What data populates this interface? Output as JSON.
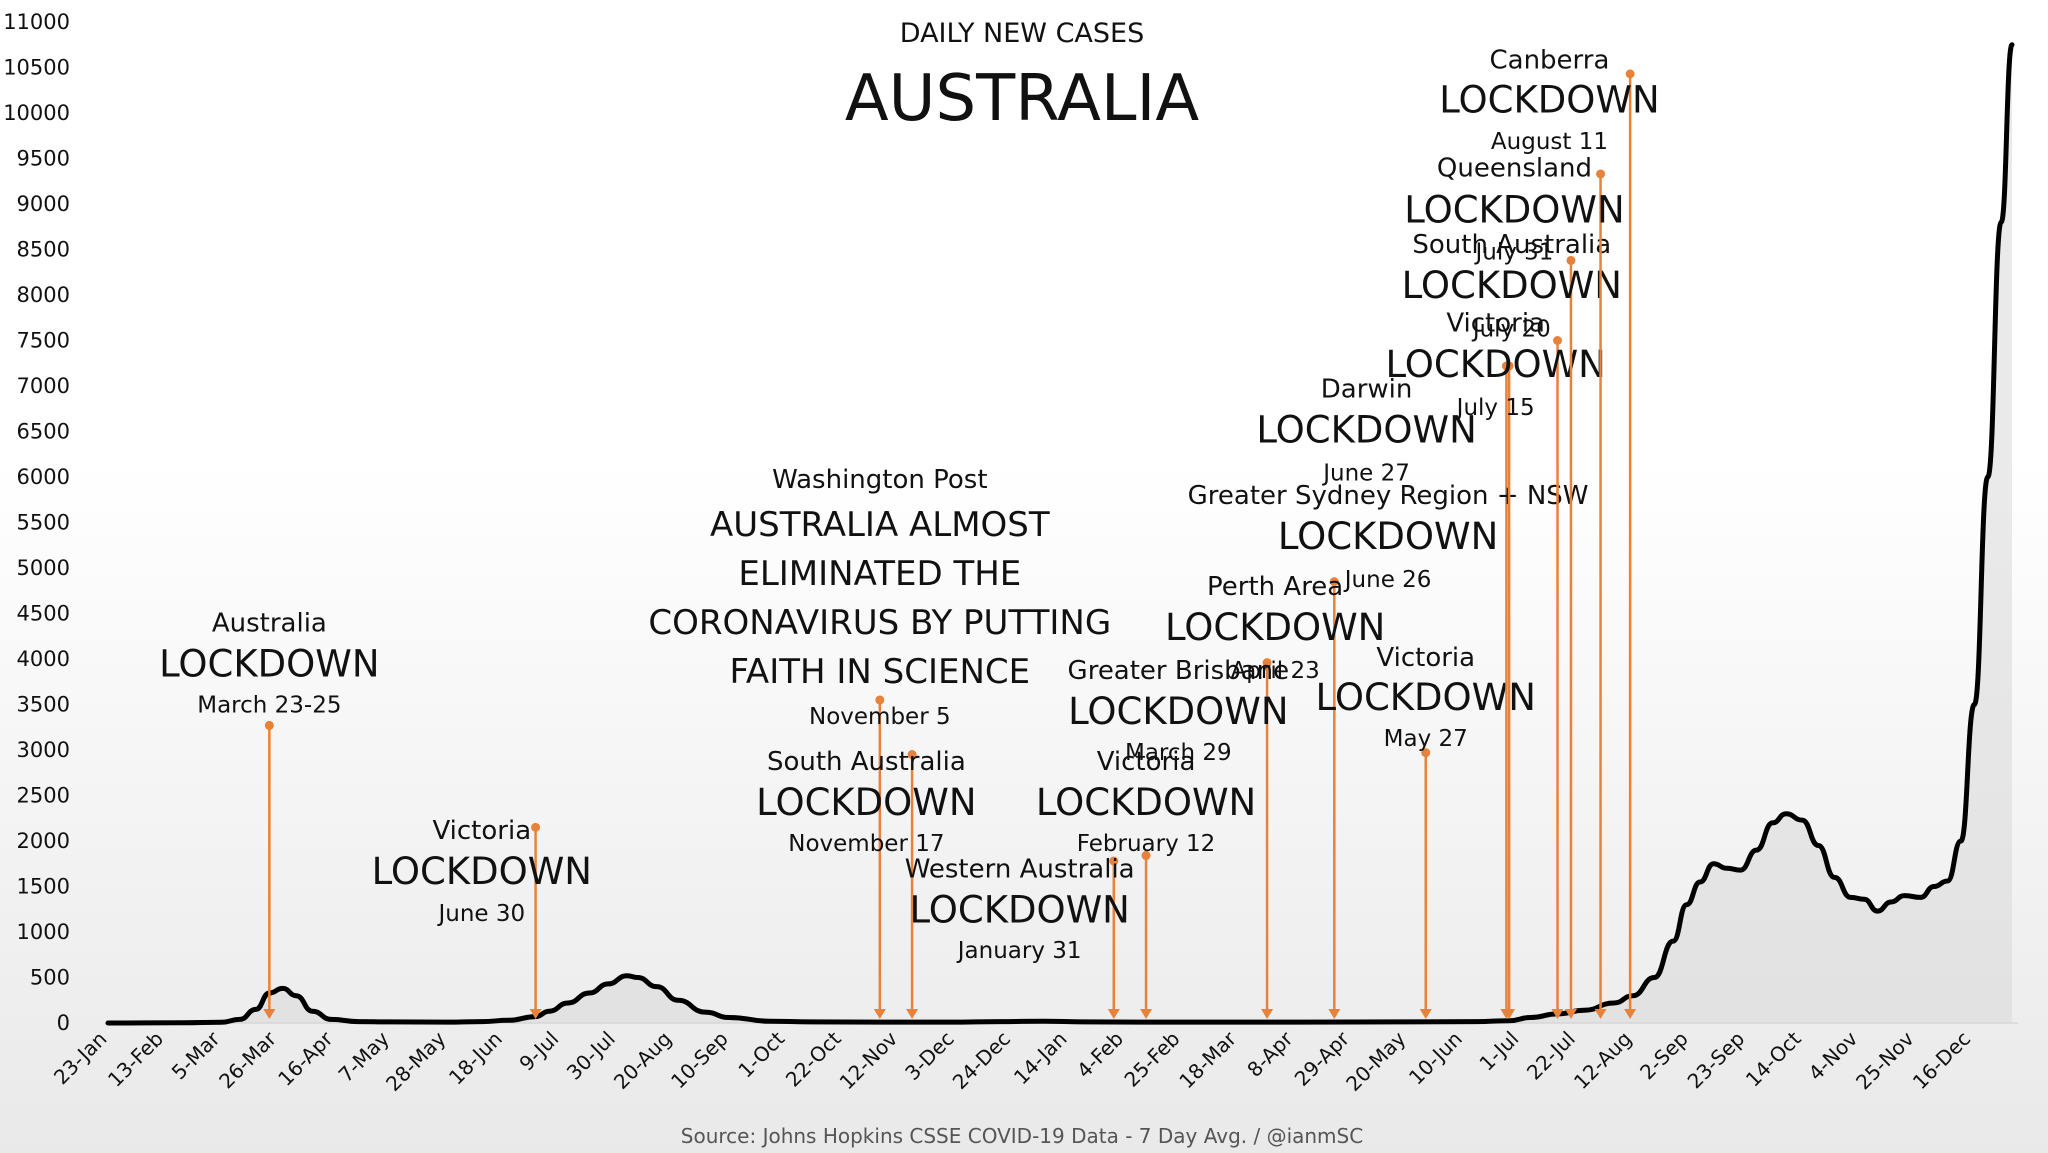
{
  "chart_data": {
    "type": "line",
    "subtitle": "DAILY NEW CASES",
    "title": "AUSTRALIA",
    "source": "Source: Johns Hopkins CSSE COVID-19 Data - 7 Day Avg. / @ianmSC",
    "ylim": [
      0,
      11000
    ],
    "y_ticks": [
      0,
      500,
      1000,
      1500,
      2000,
      2500,
      3000,
      3500,
      4000,
      4500,
      5000,
      5500,
      6000,
      6500,
      7000,
      7500,
      8000,
      8500,
      9000,
      9500,
      10000,
      10500,
      11000
    ],
    "x_start": "2020-01-23",
    "x_end": "2021-12-31",
    "x_ticks": [
      {
        "label": "23-Jan",
        "date": "2020-01-23"
      },
      {
        "label": "13-Feb",
        "date": "2020-02-13"
      },
      {
        "label": "5-Mar",
        "date": "2020-03-05"
      },
      {
        "label": "26-Mar",
        "date": "2020-03-26"
      },
      {
        "label": "16-Apr",
        "date": "2020-04-16"
      },
      {
        "label": "7-May",
        "date": "2020-05-07"
      },
      {
        "label": "28-May",
        "date": "2020-05-28"
      },
      {
        "label": "18-Jun",
        "date": "2020-06-18"
      },
      {
        "label": "9-Jul",
        "date": "2020-07-09"
      },
      {
        "label": "30-Jul",
        "date": "2020-07-30"
      },
      {
        "label": "20-Aug",
        "date": "2020-08-20"
      },
      {
        "label": "10-Sep",
        "date": "2020-09-10"
      },
      {
        "label": "1-Oct",
        "date": "2020-10-01"
      },
      {
        "label": "22-Oct",
        "date": "2020-10-22"
      },
      {
        "label": "12-Nov",
        "date": "2020-11-12"
      },
      {
        "label": "3-Dec",
        "date": "2020-12-03"
      },
      {
        "label": "24-Dec",
        "date": "2020-12-24"
      },
      {
        "label": "14-Jan",
        "date": "2021-01-14"
      },
      {
        "label": "4-Feb",
        "date": "2021-02-04"
      },
      {
        "label": "25-Feb",
        "date": "2021-02-25"
      },
      {
        "label": "18-Mar",
        "date": "2021-03-18"
      },
      {
        "label": "8-Apr",
        "date": "2021-04-08"
      },
      {
        "label": "29-Apr",
        "date": "2021-04-29"
      },
      {
        "label": "20-May",
        "date": "2021-05-20"
      },
      {
        "label": "10-Jun",
        "date": "2021-06-10"
      },
      {
        "label": "1-Jul",
        "date": "2021-07-01"
      },
      {
        "label": "22-Jul",
        "date": "2021-07-22"
      },
      {
        "label": "12-Aug",
        "date": "2021-08-12"
      },
      {
        "label": "2-Sep",
        "date": "2021-09-02"
      },
      {
        "label": "23-Sep",
        "date": "2021-09-23"
      },
      {
        "label": "14-Oct",
        "date": "2021-10-14"
      },
      {
        "label": "4-Nov",
        "date": "2021-11-04"
      },
      {
        "label": "25-Nov",
        "date": "2021-11-25"
      },
      {
        "label": "16-Dec",
        "date": "2021-12-16"
      }
    ],
    "series": [
      {
        "points": [
          [
            "2020-01-23",
            0
          ],
          [
            "2020-02-20",
            2
          ],
          [
            "2020-03-05",
            8
          ],
          [
            "2020-03-12",
            40
          ],
          [
            "2020-03-18",
            150
          ],
          [
            "2020-03-23",
            330
          ],
          [
            "2020-03-28",
            380
          ],
          [
            "2020-04-02",
            300
          ],
          [
            "2020-04-08",
            130
          ],
          [
            "2020-04-15",
            40
          ],
          [
            "2020-04-25",
            15
          ],
          [
            "2020-05-07",
            12
          ],
          [
            "2020-05-28",
            10
          ],
          [
            "2020-06-10",
            15
          ],
          [
            "2020-06-20",
            30
          ],
          [
            "2020-06-30",
            70
          ],
          [
            "2020-07-05",
            130
          ],
          [
            "2020-07-12",
            220
          ],
          [
            "2020-07-20",
            330
          ],
          [
            "2020-07-27",
            430
          ],
          [
            "2020-08-03",
            520
          ],
          [
            "2020-08-07",
            500
          ],
          [
            "2020-08-14",
            400
          ],
          [
            "2020-08-22",
            250
          ],
          [
            "2020-09-01",
            120
          ],
          [
            "2020-09-10",
            60
          ],
          [
            "2020-09-25",
            20
          ],
          [
            "2020-10-10",
            12
          ],
          [
            "2020-11-05",
            10
          ],
          [
            "2020-12-01",
            10
          ],
          [
            "2020-12-20",
            15
          ],
          [
            "2021-01-05",
            20
          ],
          [
            "2021-01-20",
            12
          ],
          [
            "2021-02-10",
            10
          ],
          [
            "2021-03-10",
            10
          ],
          [
            "2021-04-10",
            10
          ],
          [
            "2021-05-20",
            12
          ],
          [
            "2021-06-15",
            15
          ],
          [
            "2021-06-27",
            25
          ],
          [
            "2021-07-05",
            60
          ],
          [
            "2021-07-15",
            100
          ],
          [
            "2021-07-25",
            140
          ],
          [
            "2021-08-05",
            220
          ],
          [
            "2021-08-12",
            300
          ],
          [
            "2021-08-20",
            500
          ],
          [
            "2021-08-27",
            900
          ],
          [
            "2021-09-01",
            1300
          ],
          [
            "2021-09-06",
            1550
          ],
          [
            "2021-09-11",
            1750
          ],
          [
            "2021-09-16",
            1700
          ],
          [
            "2021-09-21",
            1680
          ],
          [
            "2021-09-27",
            1900
          ],
          [
            "2021-10-03",
            2200
          ],
          [
            "2021-10-08",
            2300
          ],
          [
            "2021-10-14",
            2230
          ],
          [
            "2021-10-20",
            1950
          ],
          [
            "2021-10-26",
            1600
          ],
          [
            "2021-11-01",
            1380
          ],
          [
            "2021-11-06",
            1360
          ],
          [
            "2021-11-11",
            1230
          ],
          [
            "2021-11-16",
            1330
          ],
          [
            "2021-11-21",
            1400
          ],
          [
            "2021-11-27",
            1380
          ],
          [
            "2021-12-02",
            1500
          ],
          [
            "2021-12-07",
            1560
          ],
          [
            "2021-12-12",
            2000
          ],
          [
            "2021-12-17",
            3500
          ],
          [
            "2021-12-22",
            6000
          ],
          [
            "2021-12-27",
            8800
          ],
          [
            "2021-12-31",
            10750
          ]
        ]
      }
    ],
    "annotations": [
      {
        "region": "Australia",
        "headline": "LOCKDOWN",
        "date_text": "March 23-25",
        "date": "2020-03-23",
        "marker_top": 3270,
        "text_x": "2020-03-23",
        "region_y": 4400,
        "headline_y": 3950,
        "date_y": 3500
      },
      {
        "region": "Victoria",
        "headline": "LOCKDOWN",
        "date_text": "June 30",
        "date": "2020-06-30",
        "marker_top": 2150,
        "text_x": "2020-06-10",
        "region_y": 2120,
        "headline_y": 1670,
        "date_y": 1210
      },
      {
        "region": "Washington Post",
        "headline_lines": [
          "AUSTRALIA ALMOST",
          "ELIMINATED THE",
          "CORONAVIRUS BY PUTTING",
          "FAITH IN SCIENCE"
        ],
        "date_text": "November 5",
        "date": "2020-11-05",
        "marker_top": 3550,
        "text_x": "2020-11-05",
        "region_y": 5980
      },
      {
        "region": "South Australia",
        "headline": "LOCKDOWN",
        "date_text": "November 17",
        "date": "2020-11-17",
        "marker_top": 2950,
        "text_x": "2020-10-31",
        "region_y": 2880,
        "headline_y": 2430,
        "date_y": 1980
      },
      {
        "region": "Western Australia",
        "headline": "LOCKDOWN",
        "date_text": "January 31",
        "date": "2021-01-31",
        "marker_top": 1780,
        "text_x": "2020-12-27",
        "region_y": 1700,
        "headline_y": 1250,
        "date_y": 800
      },
      {
        "region": "Victoria",
        "headline": "LOCKDOWN",
        "date_text": "February 12",
        "date": "2021-02-12",
        "marker_top": 1840,
        "text_x": "2021-02-12",
        "region_y": 2880,
        "headline_y": 2430,
        "date_y": 1980
      },
      {
        "region": "Greater Brisbane",
        "headline": "LOCKDOWN",
        "date_text": "March 29",
        "date": "2021-03-29",
        "marker_top": 3960,
        "text_x": "2021-02-24",
        "region_y": 3880,
        "headline_y": 3430,
        "date_y": 2980
      },
      {
        "region": "Perth Area",
        "headline": "LOCKDOWN",
        "date_text": "April 23",
        "date": "2021-04-23",
        "marker_top": 4850,
        "text_x": "2021-04-01",
        "region_y": 4800,
        "headline_y": 4350,
        "date_y": 3880
      },
      {
        "region": "Victoria",
        "headline": "LOCKDOWN",
        "date_text": "May 27",
        "date": "2021-05-27",
        "marker_top": 2970,
        "text_x": "2021-05-27",
        "region_y": 4020,
        "headline_y": 3580,
        "date_y": 3130
      },
      {
        "region": "Greater Sydney Region + NSW",
        "headline": "LOCKDOWN",
        "date_text": "June 26",
        "date": "2021-06-26",
        "marker_top": 7220,
        "text_x": "2021-05-13",
        "region_y": 5800,
        "headline_y": 5350,
        "date_y": 4880
      },
      {
        "region": "Darwin",
        "headline": "LOCKDOWN",
        "date_text": "June 27",
        "date": "2021-06-27",
        "marker_top": 7220,
        "text_x": "2021-05-05",
        "region_y": 6970,
        "headline_y": 6520,
        "date_y": 6050
      },
      {
        "region": "Victoria",
        "headline": "LOCKDOWN",
        "date_text": "July 15",
        "date": "2021-07-15",
        "marker_top": 7500,
        "text_x": "2021-06-22",
        "region_y": 7700,
        "headline_y": 7240,
        "date_y": 6770
      },
      {
        "region": "South Australia",
        "headline": "LOCKDOWN",
        "date_text": "July 20",
        "date": "2021-07-20",
        "marker_top": 8380,
        "text_x": "2021-06-28",
        "region_y": 8560,
        "headline_y": 8110,
        "date_y": 7630
      },
      {
        "region": "Queensland",
        "headline": "LOCKDOWN",
        "date_text": "July 31",
        "date": "2021-07-31",
        "marker_top": 9330,
        "text_x": "2021-06-29",
        "region_y": 9400,
        "headline_y": 8940,
        "date_y": 8480
      },
      {
        "region": "Canberra",
        "headline": "LOCKDOWN",
        "date_text": "August 11",
        "date": "2021-08-11",
        "marker_top": 10430,
        "text_x": "2021-07-12",
        "region_y": 10590,
        "headline_y": 10150,
        "date_y": 9690
      }
    ],
    "grid": false,
    "legend": "none"
  }
}
